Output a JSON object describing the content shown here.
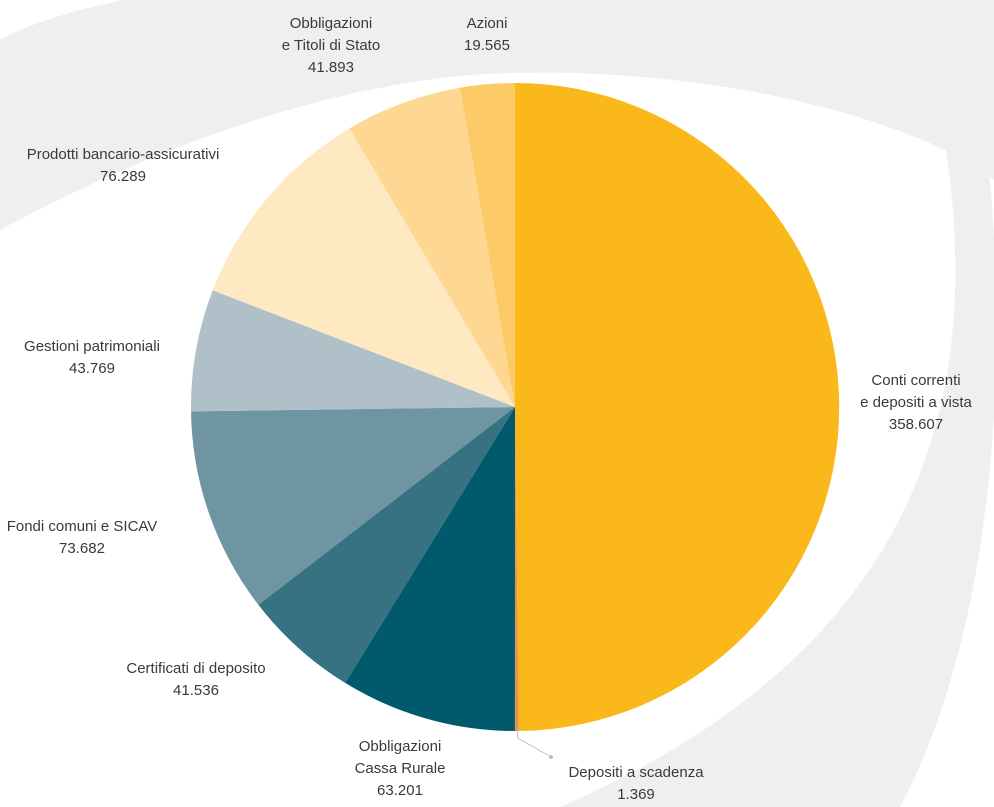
{
  "chart_data": {
    "type": "pie",
    "title": "",
    "start_angle_deg": 0,
    "direction": "clockwise",
    "slices": [
      {
        "label": [
          "Conti correnti",
          "e depositi a vista"
        ],
        "value": "358.607",
        "amount": 358607,
        "color": "#FBB81B"
      },
      {
        "label": [
          "Depositi a scadenza"
        ],
        "value": "1.369",
        "amount": 1369,
        "color": "#E8914A"
      },
      {
        "label": [
          "Obbligazioni",
          "Cassa Rurale"
        ],
        "value": "63.201",
        "amount": 63201,
        "color": "#005A6B"
      },
      {
        "label": [
          "Certificati di deposito"
        ],
        "value": "41.536",
        "amount": 41536,
        "color": "#367282"
      },
      {
        "label": [
          "Fondi comuni e SICAV"
        ],
        "value": "73.682",
        "amount": 73682,
        "color": "#6F94A2"
      },
      {
        "label": [
          "Gestioni patrimoniali"
        ],
        "value": "43.769",
        "amount": 43769,
        "color": "#B0C0C8"
      },
      {
        "label": [
          "Prodotti bancario-assicurativi"
        ],
        "value": "76.289",
        "amount": 76289,
        "color": "#FEE9C2"
      },
      {
        "label": [
          "Obbligazioni",
          "e Titoli di Stato"
        ],
        "value": "41.893",
        "amount": 41893,
        "color": "#FED792"
      },
      {
        "label": [
          "Azioni"
        ],
        "value": "19.565",
        "amount": 19565,
        "color": "#FCCA66"
      }
    ],
    "background_swoosh_color": "#EFEFF0",
    "leader_color": "#BDBDBD"
  }
}
